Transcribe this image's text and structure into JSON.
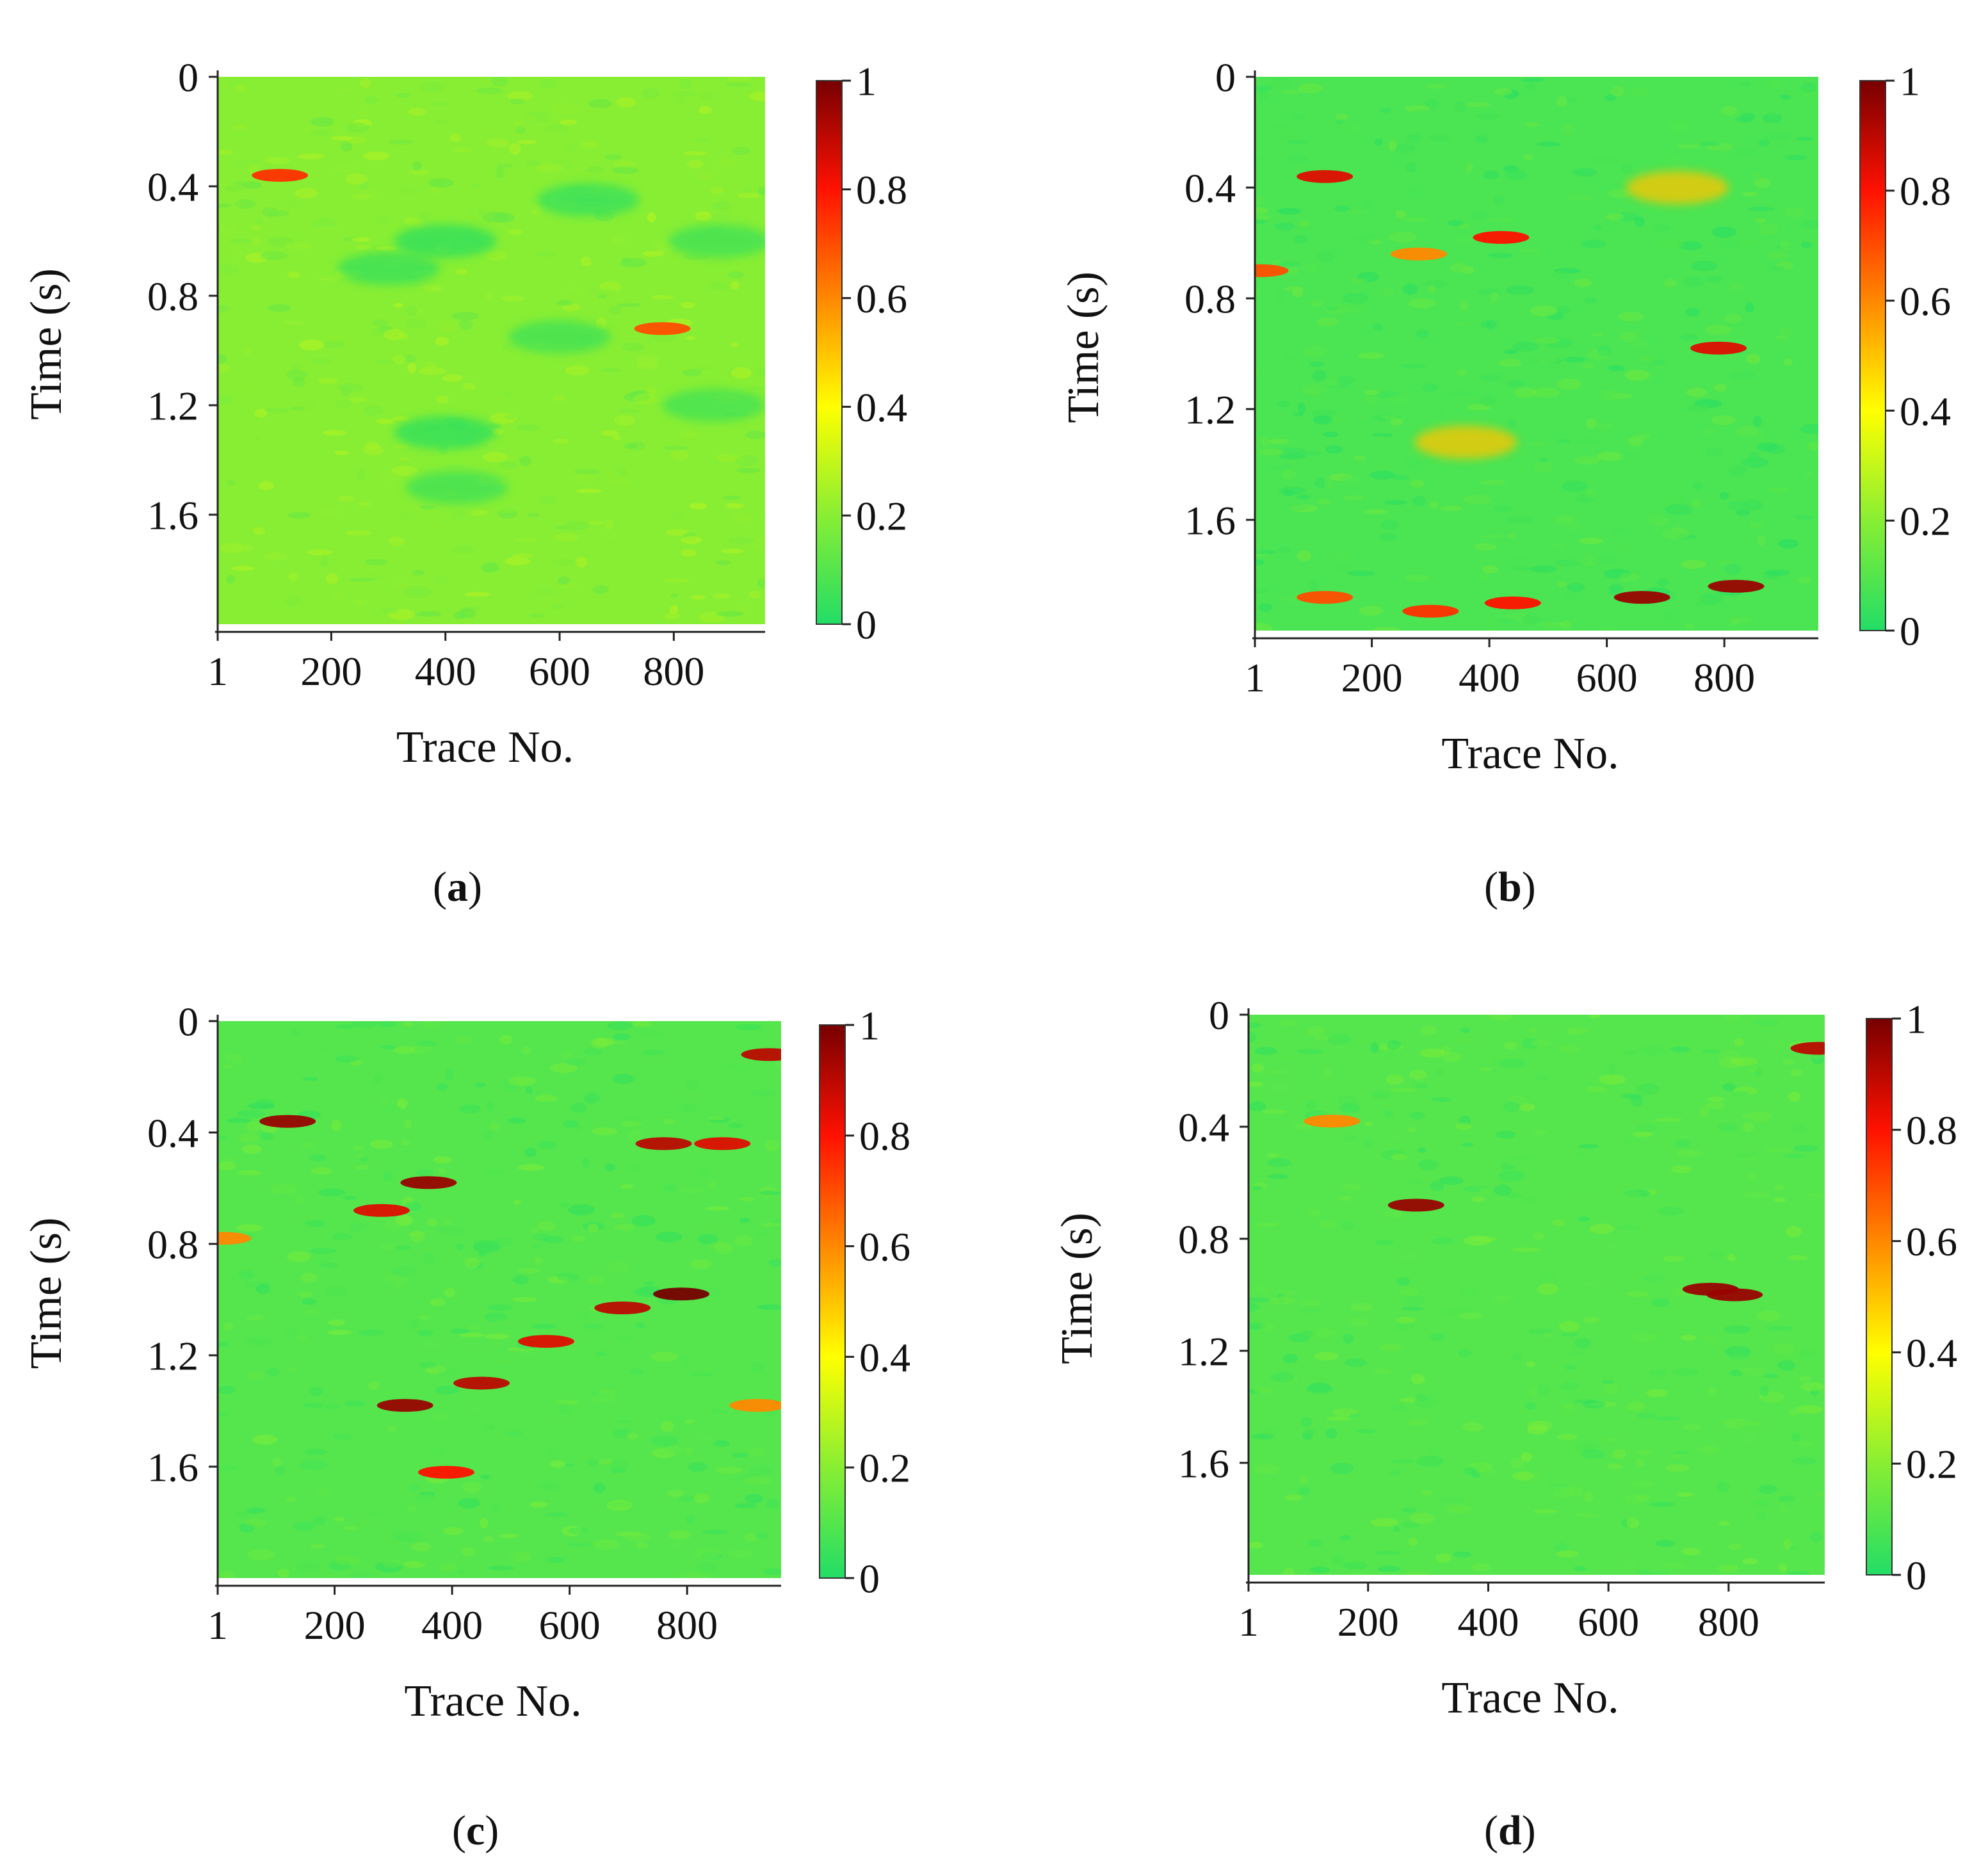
{
  "figure": {
    "panels": [
      {
        "caption": "a"
      },
      {
        "caption": "b"
      },
      {
        "caption": "c"
      },
      {
        "caption": "d"
      }
    ]
  },
  "chart_data": [
    {
      "type": "heatmap",
      "title": "",
      "panel": "a",
      "xlabel": "Trace No.",
      "ylabel": "Time (s)",
      "xlim": [
        1,
        960
      ],
      "ylim": [
        0,
        2.0
      ],
      "x_ticks": [
        "1",
        "200",
        "400",
        "600",
        "800"
      ],
      "x_tick_values": [
        1,
        200,
        400,
        600,
        800
      ],
      "y_ticks": [
        "0",
        "0.4",
        "0.8",
        "1.2",
        "1.6"
      ],
      "y_tick_values": [
        0,
        0.4,
        0.8,
        1.2,
        1.6
      ],
      "colorbar": {
        "ticks": [
          "0",
          "0.2",
          "0.4",
          "0.6",
          "0.8",
          "1"
        ],
        "tick_values": [
          0,
          0.2,
          0.4,
          0.6,
          0.8,
          1
        ],
        "stops": [
          "#22dd66",
          "#88ee33",
          "#ffff00",
          "#ff8800",
          "#ff1100",
          "#770000"
        ]
      },
      "background_value": 0.2,
      "features": [
        {
          "trace": 110,
          "time": 0.36,
          "value": 0.75
        },
        {
          "trace": 780,
          "time": 0.92,
          "value": 0.7
        },
        {
          "trace": 400,
          "time": 0.6,
          "value": 0.02
        },
        {
          "trace": 300,
          "time": 0.7,
          "value": 0.04
        },
        {
          "trace": 650,
          "time": 0.45,
          "value": 0.03
        },
        {
          "trace": 400,
          "time": 1.3,
          "value": 0.02
        },
        {
          "trace": 420,
          "time": 1.5,
          "value": 0.05
        },
        {
          "trace": 600,
          "time": 0.95,
          "value": 0.05
        },
        {
          "trace": 870,
          "time": 1.2,
          "value": 0.06
        },
        {
          "trace": 880,
          "time": 0.6,
          "value": 0.05
        }
      ]
    },
    {
      "type": "heatmap",
      "title": "",
      "panel": "b",
      "xlabel": "Trace No.",
      "ylabel": "Time (s)",
      "xlim": [
        1,
        960
      ],
      "ylim": [
        0,
        2.0
      ],
      "x_ticks": [
        "1",
        "200",
        "400",
        "600",
        "800"
      ],
      "x_tick_values": [
        1,
        200,
        400,
        600,
        800
      ],
      "y_ticks": [
        "0",
        "0.4",
        "0.8",
        "1.2",
        "1.6"
      ],
      "y_tick_values": [
        0,
        0.4,
        0.8,
        1.2,
        1.6
      ],
      "colorbar": {
        "ticks": [
          "0",
          "0.2",
          "0.4",
          "0.6",
          "0.8",
          "1"
        ],
        "tick_values": [
          0,
          0.2,
          0.4,
          0.6,
          0.8,
          1
        ],
        "stops": [
          "#22dd66",
          "#88ee33",
          "#ffff00",
          "#ff8800",
          "#ff1100",
          "#770000"
        ]
      },
      "background_value": 0.08,
      "features": [
        {
          "trace": 120,
          "time": 0.36,
          "value": 0.85
        },
        {
          "trace": 420,
          "time": 0.58,
          "value": 0.8
        },
        {
          "trace": 280,
          "time": 0.64,
          "value": 0.6
        },
        {
          "trace": 790,
          "time": 0.98,
          "value": 0.85
        },
        {
          "trace": 10,
          "time": 0.7,
          "value": 0.7
        },
        {
          "trace": 360,
          "time": 1.32,
          "value": 0.5
        },
        {
          "trace": 720,
          "time": 0.4,
          "value": 0.5
        },
        {
          "trace": 660,
          "time": 1.88,
          "value": 0.95
        },
        {
          "trace": 820,
          "time": 1.84,
          "value": 0.95
        },
        {
          "trace": 440,
          "time": 1.9,
          "value": 0.8
        },
        {
          "trace": 120,
          "time": 1.88,
          "value": 0.7
        },
        {
          "trace": 300,
          "time": 1.93,
          "value": 0.75
        }
      ]
    },
    {
      "type": "heatmap",
      "title": "",
      "panel": "c",
      "xlabel": "Trace No.",
      "ylabel": "Time (s)",
      "xlim": [
        1,
        960
      ],
      "ylim": [
        0,
        2.0
      ],
      "x_ticks": [
        "1",
        "200",
        "400",
        "600",
        "800"
      ],
      "x_tick_values": [
        1,
        200,
        400,
        600,
        800
      ],
      "y_ticks": [
        "0",
        "0.4",
        "0.8",
        "1.2",
        "1.6"
      ],
      "y_tick_values": [
        0,
        0.4,
        0.8,
        1.2,
        1.6
      ],
      "colorbar": {
        "ticks": [
          "0",
          "0.2",
          "0.4",
          "0.6",
          "0.8",
          "1"
        ],
        "tick_values": [
          0,
          0.2,
          0.4,
          0.6,
          0.8,
          1
        ],
        "stops": [
          "#22dd66",
          "#88ee33",
          "#ffff00",
          "#ff8800",
          "#ff1100",
          "#770000"
        ]
      },
      "background_value": 0.1,
      "features": [
        {
          "trace": 120,
          "time": 0.36,
          "value": 0.95
        },
        {
          "trace": 360,
          "time": 0.58,
          "value": 0.95
        },
        {
          "trace": 280,
          "time": 0.68,
          "value": 0.85
        },
        {
          "trace": 760,
          "time": 0.44,
          "value": 0.9
        },
        {
          "trace": 860,
          "time": 0.44,
          "value": 0.85
        },
        {
          "trace": 790,
          "time": 0.98,
          "value": 1.0
        },
        {
          "trace": 690,
          "time": 1.03,
          "value": 0.9
        },
        {
          "trace": 320,
          "time": 1.38,
          "value": 0.95
        },
        {
          "trace": 450,
          "time": 1.3,
          "value": 0.9
        },
        {
          "trace": 390,
          "time": 1.62,
          "value": 0.8
        },
        {
          "trace": 560,
          "time": 1.15,
          "value": 0.85
        },
        {
          "trace": 940,
          "time": 0.12,
          "value": 0.9
        },
        {
          "trace": 920,
          "time": 1.38,
          "value": 0.6
        },
        {
          "trace": 10,
          "time": 0.78,
          "value": 0.6
        }
      ]
    },
    {
      "type": "heatmap",
      "title": "",
      "panel": "d",
      "xlabel": "Trace No.",
      "ylabel": "Time (s)",
      "xlim": [
        1,
        960
      ],
      "ylim": [
        0,
        2.0
      ],
      "x_ticks": [
        "1",
        "200",
        "400",
        "600",
        "800"
      ],
      "x_tick_values": [
        1,
        200,
        400,
        600,
        800
      ],
      "y_ticks": [
        "0",
        "0.4",
        "0.8",
        "1.2",
        "1.6"
      ],
      "y_tick_values": [
        0,
        0.4,
        0.8,
        1.2,
        1.6
      ],
      "colorbar": {
        "ticks": [
          "0",
          "0.2",
          "0.4",
          "0.6",
          "0.8",
          "1"
        ],
        "tick_values": [
          0,
          0.2,
          0.4,
          0.6,
          0.8,
          1
        ],
        "stops": [
          "#22dd66",
          "#88ee33",
          "#ffff00",
          "#ff8800",
          "#ff1100",
          "#770000"
        ]
      },
      "background_value": 0.1,
      "features": [
        {
          "trace": 280,
          "time": 0.68,
          "value": 0.95
        },
        {
          "trace": 770,
          "time": 0.98,
          "value": 0.95
        },
        {
          "trace": 810,
          "time": 1.0,
          "value": 0.95
        },
        {
          "trace": 140,
          "time": 0.38,
          "value": 0.6
        },
        {
          "trace": 950,
          "time": 0.12,
          "value": 0.9
        }
      ]
    }
  ]
}
